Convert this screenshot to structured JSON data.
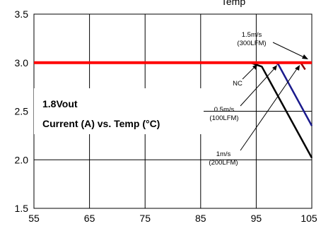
{
  "chart_data": {
    "type": "line",
    "title": "Temp",
    "xlabel": "",
    "ylabel": "",
    "xlim": [
      55,
      105
    ],
    "ylim": [
      1.5,
      3.5
    ],
    "x_ticks": [
      "55",
      "65",
      "75",
      "85",
      "95",
      "105"
    ],
    "y_ticks": [
      "1.5",
      "2.0",
      "2.5",
      "3.0",
      "3.5"
    ],
    "grid": true,
    "annotations": {
      "label_vout": "1.8Vout",
      "label_curve": "Current (A) vs. Temp (°C)",
      "label_nc": "NC",
      "label_05": "0.5m/s",
      "label_05b": "(100LFM)",
      "label_1": "1m/s",
      "label_1b": "(200LFM)",
      "label_15": "1.5m/s",
      "label_15b": "(300LFM)"
    },
    "series": [
      {
        "color": "#ff0000",
        "x": [
          55,
          105
        ],
        "y": [
          3.0,
          3.0
        ]
      },
      {
        "color": "#000000",
        "x": [
          55,
          94,
          96,
          105
        ],
        "y": [
          3.0,
          3.0,
          2.96,
          2.02
        ]
      },
      {
        "color": "#1a1a8c",
        "x": [
          55,
          98.5,
          99,
          105
        ],
        "y": [
          3.0,
          3.0,
          2.98,
          2.35
        ]
      },
      {
        "color": "#8b0000",
        "x": [
          55,
          103,
          103.8
        ],
        "y": [
          3.0,
          3.0,
          2.93
        ]
      }
    ]
  }
}
